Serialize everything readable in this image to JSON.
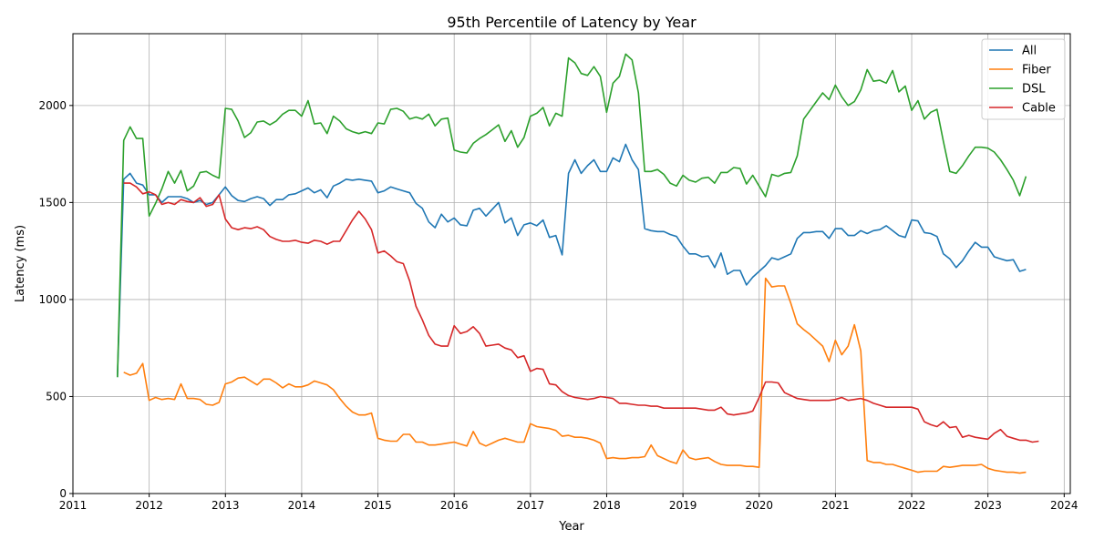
{
  "chart_data": {
    "type": "line",
    "title": "95th Percentile of Latency by Year",
    "xlabel": "Year",
    "ylabel": "Latency (ms)",
    "xlim": [
      2011.0,
      2024.08
    ],
    "ylim": [
      0,
      2370
    ],
    "x_ticks": [
      2011,
      2012,
      2013,
      2014,
      2015,
      2016,
      2017,
      2018,
      2019,
      2020,
      2021,
      2022,
      2023,
      2024
    ],
    "y_ticks": [
      0,
      500,
      1000,
      1500,
      2000
    ],
    "grid": true,
    "legend": "top-right",
    "x_start": 2011.583,
    "x_step": 0.08333,
    "series": [
      {
        "name": "All",
        "color": "#1f77b4",
        "values": [
          600,
          1620,
          1650,
          1600,
          1590,
          1540,
          1540,
          1500,
          1530,
          1530,
          1530,
          1520,
          1500,
          1510,
          1490,
          1500,
          1540,
          1580,
          1535,
          1510,
          1505,
          1520,
          1530,
          1520,
          1485,
          1515,
          1515,
          1540,
          1545,
          1560,
          1575,
          1550,
          1565,
          1525,
          1585,
          1600,
          1620,
          1615,
          1620,
          1615,
          1610,
          1550,
          1560,
          1580,
          1570,
          1560,
          1550,
          1495,
          1470,
          1400,
          1370,
          1440,
          1400,
          1420,
          1385,
          1380,
          1460,
          1470,
          1430,
          1465,
          1500,
          1395,
          1420,
          1330,
          1385,
          1395,
          1380,
          1410,
          1320,
          1330,
          1230,
          1650,
          1720,
          1650,
          1690,
          1720,
          1660,
          1660,
          1730,
          1710,
          1800,
          1720,
          1670,
          1365,
          1355,
          1350,
          1350,
          1335,
          1325,
          1275,
          1235,
          1235,
          1220,
          1225,
          1165,
          1240,
          1130,
          1150,
          1150,
          1075,
          1115,
          1145,
          1175,
          1215,
          1205,
          1220,
          1235,
          1315,
          1345,
          1345,
          1350,
          1350,
          1315,
          1365,
          1365,
          1330,
          1330,
          1355,
          1340,
          1355,
          1360,
          1380,
          1355,
          1330,
          1320,
          1410,
          1405,
          1345,
          1340,
          1325,
          1235,
          1210,
          1165,
          1200,
          1250,
          1295,
          1270,
          1270,
          1220,
          1210,
          1200,
          1205,
          1145,
          1155
        ]
      },
      {
        "name": "Fiber",
        "color": "#ff7f0e",
        "values": [
          null,
          625,
          610,
          620,
          670,
          480,
          495,
          485,
          490,
          485,
          565,
          490,
          490,
          485,
          460,
          455,
          470,
          565,
          575,
          595,
          600,
          580,
          560,
          590,
          590,
          570,
          545,
          565,
          550,
          550,
          560,
          580,
          570,
          560,
          535,
          490,
          450,
          420,
          405,
          405,
          415,
          285,
          275,
          270,
          270,
          305,
          305,
          265,
          265,
          250,
          250,
          255,
          260,
          265,
          255,
          245,
          320,
          260,
          245,
          260,
          275,
          285,
          275,
          265,
          265,
          360,
          345,
          340,
          335,
          325,
          295,
          300,
          290,
          290,
          285,
          275,
          260,
          180,
          185,
          180,
          180,
          185,
          185,
          190,
          250,
          195,
          180,
          165,
          155,
          225,
          185,
          175,
          180,
          185,
          165,
          150,
          145,
          145,
          145,
          140,
          140,
          135,
          1110,
          1065,
          1070,
          1070,
          980,
          875,
          845,
          820,
          790,
          760,
          680,
          790,
          715,
          760,
          870,
          735,
          170,
          160,
          160,
          150,
          150,
          140,
          130,
          120,
          110,
          115,
          115,
          115,
          140,
          135,
          140,
          145,
          145,
          145,
          150,
          130,
          120,
          115,
          110,
          110,
          105,
          110
        ]
      },
      {
        "name": "DSL",
        "color": "#2ca02c",
        "values": [
          600,
          1820,
          1890,
          1830,
          1830,
          1430,
          1495,
          1570,
          1660,
          1600,
          1665,
          1560,
          1585,
          1655,
          1660,
          1640,
          1625,
          1985,
          1980,
          1920,
          1835,
          1860,
          1915,
          1920,
          1900,
          1920,
          1955,
          1975,
          1975,
          1945,
          2025,
          1905,
          1910,
          1855,
          1945,
          1920,
          1880,
          1865,
          1855,
          1865,
          1855,
          1910,
          1905,
          1980,
          1985,
          1970,
          1930,
          1940,
          1930,
          1955,
          1895,
          1930,
          1935,
          1770,
          1760,
          1755,
          1805,
          1830,
          1850,
          1875,
          1900,
          1815,
          1870,
          1785,
          1835,
          1945,
          1960,
          1990,
          1895,
          1960,
          1945,
          2245,
          2220,
          2165,
          2155,
          2200,
          2150,
          1965,
          2115,
          2150,
          2265,
          2235,
          2065,
          1660,
          1660,
          1670,
          1645,
          1600,
          1585,
          1640,
          1615,
          1605,
          1625,
          1630,
          1600,
          1655,
          1655,
          1680,
          1675,
          1595,
          1640,
          1585,
          1530,
          1645,
          1635,
          1650,
          1655,
          1740,
          1930,
          1975,
          2020,
          2065,
          2030,
          2105,
          2045,
          2000,
          2020,
          2080,
          2185,
          2125,
          2130,
          2115,
          2180,
          2070,
          2100,
          1975,
          2025,
          1930,
          1965,
          1980,
          1815,
          1660,
          1650,
          1690,
          1740,
          1785,
          1785,
          1780,
          1760,
          1720,
          1670,
          1615,
          1535,
          1635
        ]
      },
      {
        "name": "Cable",
        "color": "#d62728",
        "values": [
          null,
          1600,
          1600,
          1580,
          1545,
          1555,
          1540,
          1490,
          1500,
          1490,
          1515,
          1505,
          1500,
          1525,
          1480,
          1490,
          1540,
          1415,
          1370,
          1360,
          1370,
          1365,
          1375,
          1360,
          1325,
          1310,
          1300,
          1300,
          1305,
          1295,
          1290,
          1305,
          1300,
          1285,
          1300,
          1300,
          1355,
          1410,
          1455,
          1415,
          1360,
          1240,
          1250,
          1225,
          1195,
          1185,
          1095,
          965,
          895,
          815,
          770,
          760,
          760,
          865,
          825,
          835,
          860,
          825,
          760,
          765,
          770,
          750,
          740,
          700,
          710,
          630,
          645,
          640,
          565,
          560,
          525,
          505,
          495,
          490,
          485,
          490,
          500,
          495,
          490,
          465,
          465,
          460,
          455,
          455,
          450,
          450,
          440,
          440,
          440,
          440,
          440,
          440,
          435,
          430,
          430,
          445,
          410,
          405,
          410,
          415,
          425,
          495,
          575,
          575,
          570,
          520,
          505,
          490,
          485,
          480,
          480,
          480,
          480,
          485,
          495,
          480,
          485,
          490,
          480,
          465,
          455,
          445,
          445,
          445,
          445,
          445,
          435,
          370,
          355,
          345,
          370,
          340,
          345,
          290,
          300,
          290,
          285,
          280,
          310,
          330,
          295,
          285,
          275,
          275,
          265,
          270
        ]
      }
    ]
  }
}
